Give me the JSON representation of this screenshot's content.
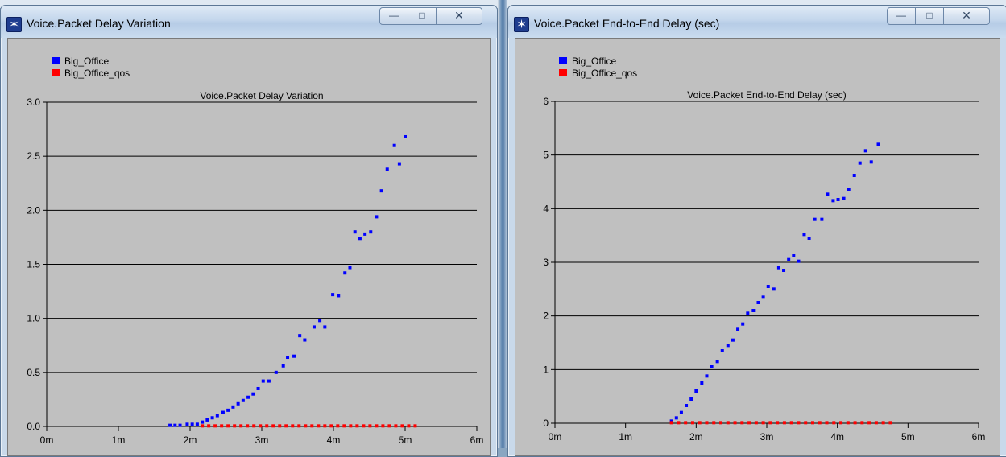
{
  "windows": [
    {
      "title": "Voice.Packet Delay Variation",
      "controls": {
        "minimize": "—",
        "maximize": "□",
        "close": "✕"
      },
      "icon": "opnet-star-icon"
    },
    {
      "title": "Voice.Packet End-to-End Delay (sec)",
      "controls": {
        "minimize": "—",
        "maximize": "□",
        "close": "✕"
      },
      "icon": "opnet-star-icon"
    }
  ],
  "chart_data": [
    {
      "type": "scatter",
      "title": "Voice.Packet Delay Variation",
      "xlabel": "",
      "ylabel": "",
      "xlim": [
        0,
        6
      ],
      "ylim": [
        0,
        3
      ],
      "x_ticks": [
        "0m",
        "1m",
        "2m",
        "3m",
        "4m",
        "5m",
        "6m"
      ],
      "y_ticks": [
        "0.0",
        "0.5",
        "1.0",
        "1.5",
        "2.0",
        "2.5",
        "3.0"
      ],
      "grid": true,
      "legend_position": "top-left",
      "series": [
        {
          "name": "Big_Office",
          "color": "#0000ff",
          "points": [
            [
              1.72,
              0.01
            ],
            [
              1.79,
              0.01
            ],
            [
              1.86,
              0.01
            ],
            [
              1.96,
              0.02
            ],
            [
              2.03,
              0.02
            ],
            [
              2.1,
              0.02
            ],
            [
              2.17,
              0.04
            ],
            [
              2.24,
              0.06
            ],
            [
              2.31,
              0.08
            ],
            [
              2.38,
              0.1
            ],
            [
              2.46,
              0.13
            ],
            [
              2.53,
              0.15
            ],
            [
              2.6,
              0.18
            ],
            [
              2.67,
              0.21
            ],
            [
              2.74,
              0.24
            ],
            [
              2.81,
              0.27
            ],
            [
              2.88,
              0.3
            ],
            [
              2.95,
              0.35
            ],
            [
              3.02,
              0.42
            ],
            [
              3.1,
              0.42
            ],
            [
              3.2,
              0.5
            ],
            [
              3.3,
              0.56
            ],
            [
              3.36,
              0.64
            ],
            [
              3.45,
              0.65
            ],
            [
              3.53,
              0.84
            ],
            [
              3.6,
              0.8
            ],
            [
              3.73,
              0.92
            ],
            [
              3.81,
              0.98
            ],
            [
              3.88,
              0.92
            ],
            [
              3.99,
              1.22
            ],
            [
              4.07,
              1.21
            ],
            [
              4.16,
              1.42
            ],
            [
              4.23,
              1.47
            ],
            [
              4.3,
              1.8
            ],
            [
              4.37,
              1.74
            ],
            [
              4.44,
              1.78
            ],
            [
              4.52,
              1.8
            ],
            [
              4.6,
              1.94
            ],
            [
              4.67,
              2.18
            ],
            [
              4.75,
              2.38
            ],
            [
              4.85,
              2.6
            ],
            [
              4.92,
              2.43
            ],
            [
              5.0,
              2.68
            ]
          ]
        },
        {
          "name": "Big_Office_qos",
          "color": "#ff0000",
          "points": [
            [
              2.17,
              0.005
            ],
            [
              2.26,
              0.005
            ],
            [
              2.35,
              0.005
            ],
            [
              2.44,
              0.005
            ],
            [
              2.53,
              0.005
            ],
            [
              2.62,
              0.005
            ],
            [
              2.71,
              0.005
            ],
            [
              2.8,
              0.005
            ],
            [
              2.89,
              0.005
            ],
            [
              2.98,
              0.005
            ],
            [
              3.07,
              0.005
            ],
            [
              3.16,
              0.005
            ],
            [
              3.25,
              0.005
            ],
            [
              3.34,
              0.005
            ],
            [
              3.43,
              0.005
            ],
            [
              3.52,
              0.005
            ],
            [
              3.61,
              0.005
            ],
            [
              3.7,
              0.005
            ],
            [
              3.79,
              0.005
            ],
            [
              3.88,
              0.005
            ],
            [
              3.97,
              0.005
            ],
            [
              4.06,
              0.005
            ],
            [
              4.15,
              0.005
            ],
            [
              4.24,
              0.005
            ],
            [
              4.33,
              0.005
            ],
            [
              4.42,
              0.005
            ],
            [
              4.51,
              0.005
            ],
            [
              4.6,
              0.005
            ],
            [
              4.69,
              0.005
            ],
            [
              4.78,
              0.005
            ],
            [
              4.87,
              0.005
            ],
            [
              4.96,
              0.005
            ],
            [
              5.05,
              0.005
            ],
            [
              5.14,
              0.005
            ]
          ]
        }
      ]
    },
    {
      "type": "scatter",
      "title": "Voice.Packet End-to-End Delay (sec)",
      "xlabel": "",
      "ylabel": "",
      "xlim": [
        0,
        6
      ],
      "ylim": [
        0,
        6
      ],
      "x_ticks": [
        "0m",
        "1m",
        "2m",
        "3m",
        "4m",
        "5m",
        "6m"
      ],
      "y_ticks": [
        "0",
        "1",
        "2",
        "3",
        "4",
        "5",
        "6"
      ],
      "grid": true,
      "legend_position": "top-left",
      "series": [
        {
          "name": "Big_Office",
          "color": "#0000ff",
          "points": [
            [
              1.65,
              0.04
            ],
            [
              1.72,
              0.1
            ],
            [
              1.79,
              0.2
            ],
            [
              1.86,
              0.33
            ],
            [
              1.93,
              0.45
            ],
            [
              2.0,
              0.6
            ],
            [
              2.08,
              0.75
            ],
            [
              2.15,
              0.88
            ],
            [
              2.22,
              1.05
            ],
            [
              2.3,
              1.15
            ],
            [
              2.37,
              1.35
            ],
            [
              2.45,
              1.45
            ],
            [
              2.52,
              1.55
            ],
            [
              2.59,
              1.75
            ],
            [
              2.66,
              1.85
            ],
            [
              2.73,
              2.05
            ],
            [
              2.81,
              2.1
            ],
            [
              2.88,
              2.25
            ],
            [
              2.95,
              2.35
            ],
            [
              3.02,
              2.55
            ],
            [
              3.1,
              2.5
            ],
            [
              3.17,
              2.9
            ],
            [
              3.24,
              2.85
            ],
            [
              3.31,
              3.05
            ],
            [
              3.38,
              3.12
            ],
            [
              3.45,
              3.02
            ],
            [
              3.53,
              3.52
            ],
            [
              3.6,
              3.45
            ],
            [
              3.68,
              3.8
            ],
            [
              3.78,
              3.8
            ],
            [
              3.86,
              4.27
            ],
            [
              3.94,
              4.15
            ],
            [
              4.01,
              4.17
            ],
            [
              4.09,
              4.19
            ],
            [
              4.16,
              4.35
            ],
            [
              4.24,
              4.62
            ],
            [
              4.32,
              4.85
            ],
            [
              4.4,
              5.08
            ],
            [
              4.48,
              4.87
            ],
            [
              4.58,
              5.2
            ]
          ]
        },
        {
          "name": "Big_Office_qos",
          "color": "#ff0000",
          "points": [
            [
              1.65,
              0.01
            ],
            [
              1.75,
              0.01
            ],
            [
              1.85,
              0.01
            ],
            [
              1.95,
              0.01
            ],
            [
              2.05,
              0.01
            ],
            [
              2.15,
              0.01
            ],
            [
              2.25,
              0.01
            ],
            [
              2.35,
              0.01
            ],
            [
              2.45,
              0.01
            ],
            [
              2.55,
              0.01
            ],
            [
              2.65,
              0.01
            ],
            [
              2.75,
              0.01
            ],
            [
              2.85,
              0.01
            ],
            [
              2.95,
              0.01
            ],
            [
              3.05,
              0.01
            ],
            [
              3.15,
              0.01
            ],
            [
              3.25,
              0.01
            ],
            [
              3.35,
              0.01
            ],
            [
              3.45,
              0.01
            ],
            [
              3.55,
              0.01
            ],
            [
              3.65,
              0.01
            ],
            [
              3.75,
              0.01
            ],
            [
              3.85,
              0.01
            ],
            [
              3.95,
              0.01
            ],
            [
              4.05,
              0.01
            ],
            [
              4.15,
              0.01
            ],
            [
              4.25,
              0.01
            ],
            [
              4.35,
              0.01
            ],
            [
              4.45,
              0.01
            ],
            [
              4.55,
              0.01
            ],
            [
              4.65,
              0.01
            ],
            [
              4.75,
              0.01
            ]
          ]
        }
      ]
    }
  ]
}
